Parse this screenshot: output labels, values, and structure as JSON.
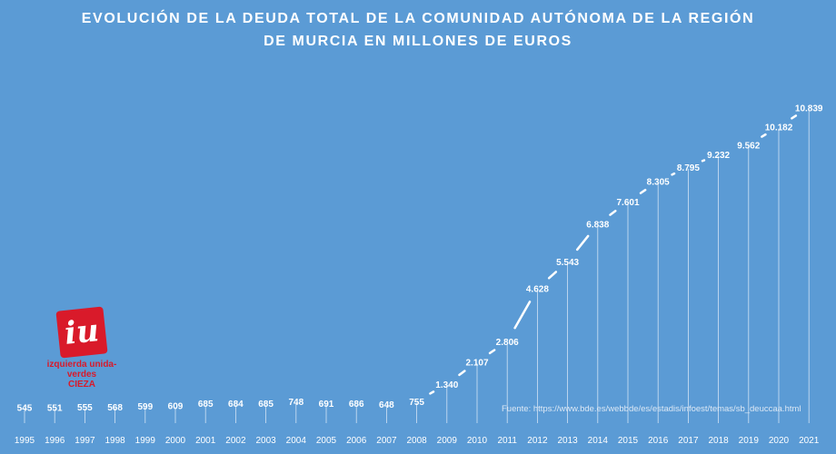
{
  "title_line1": "EVOLUCIÓN DE LA DEUDA TOTAL DE LA COMUNIDAD AUTÓNOMA DE LA REGIÓN",
  "title_line2": "DE MURCIA EN MILLONES DE EUROS",
  "source": "Fuente: https://www.bde.es/webbde/es/estadis/infoest/temas/sb_deuccaa.html",
  "logo": {
    "line1": "izquierda unida-verdes",
    "line2": "CIEZA",
    "icon": "iu-logo-icon",
    "color": "#d91a2a"
  },
  "chart_data": {
    "type": "line",
    "title": "EVOLUCIÓN DE LA DEUDA TOTAL DE LA COMUNIDAD AUTÓNOMA DE LA REGIÓN DE MURCIA EN MILLONES DE EUROS",
    "categories": [
      "1995",
      "1996",
      "1997",
      "1998",
      "1999",
      "2000",
      "2001",
      "2002",
      "2003",
      "2004",
      "2005",
      "2006",
      "2007",
      "2008",
      "2009",
      "2010",
      "2011",
      "2012",
      "2013",
      "2014",
      "2015",
      "2016",
      "2017",
      "2018",
      "2019",
      "2020",
      "2021"
    ],
    "values": [
      545,
      551,
      555,
      568,
      599,
      609,
      685,
      684,
      685,
      748,
      691,
      686,
      648,
      755,
      1340,
      2107,
      2806,
      4628,
      5543,
      6838,
      7601,
      8305,
      8795,
      9232,
      9562,
      10182,
      10839
    ],
    "labels": [
      "545",
      "551",
      "555",
      "568",
      "599",
      "609",
      "685",
      "684",
      "685",
      "748",
      "691",
      "686",
      "648",
      "755",
      "1.340",
      "2.107",
      "2.806",
      "4.628",
      "5.543",
      "6.838",
      "7.601",
      "8.305",
      "8.795",
      "9.232",
      "9.562",
      "10.182",
      "10.839"
    ],
    "ylim": [
      0,
      11500
    ],
    "grid": false,
    "drop_lines": true,
    "line_color": "#ffffff",
    "background": "#5b9bd5"
  }
}
